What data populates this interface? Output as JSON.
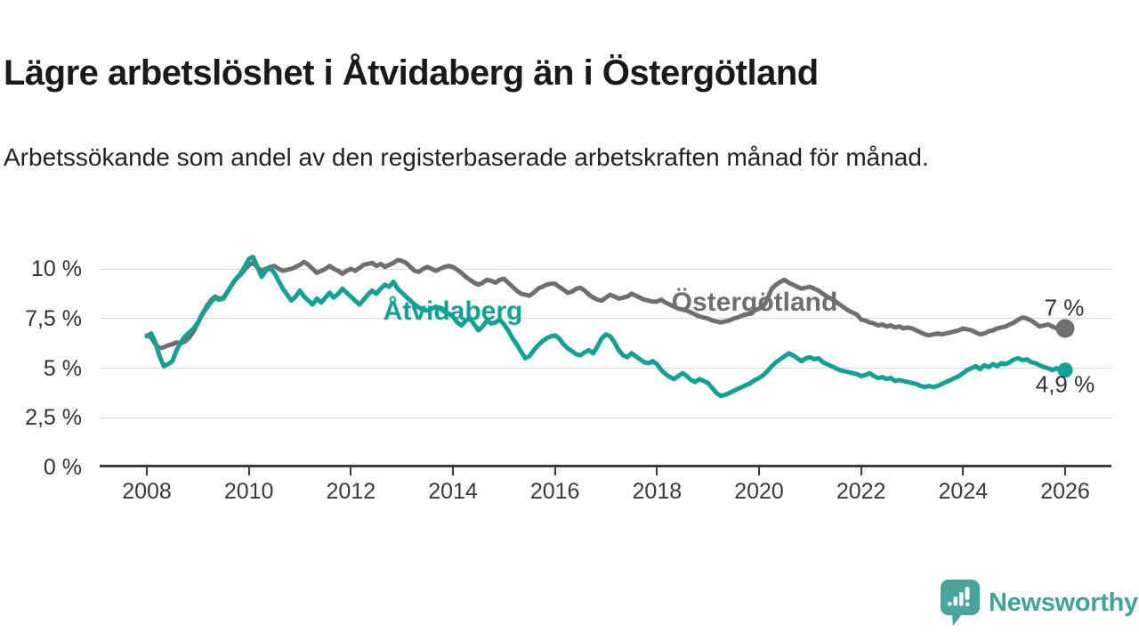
{
  "header": {
    "title": "Lägre arbetslöshet i Åtvidaberg än i Östergötland",
    "subtitle": "Arbetssökande som andel av den registerbaserade arbetskraften månad för månad."
  },
  "footer": {
    "brand": "Newsworthy",
    "logo_icon": "newsworthy-speech-bubble-bar-chart-icon"
  },
  "colors": {
    "teal_series": "#11a296",
    "gray_series": "#6f6f6f",
    "grid": "#d9d9d9",
    "axis": "#3c3c3c",
    "text_dark": "#1a1a1a",
    "brand_teal": "#3fa39a"
  },
  "chart_data": {
    "type": "line",
    "title": "Lägre arbetslöshet i Åtvidaberg än i Östergötland",
    "subtitle": "Arbetssökande som andel av den registerbaserade arbetskraften månad för månad.",
    "unit": "%",
    "frequency": "monthly",
    "x_start": "2008-01",
    "x_end": "2026-01",
    "ylim": [
      0,
      11
    ],
    "grid": "horizontal",
    "legend_position": "inline-labels",
    "y_axis": {
      "ticks": [
        {
          "value": 10,
          "label": "10 %"
        },
        {
          "value": 7.5,
          "label": "7,5 %"
        },
        {
          "value": 5,
          "label": "5 %"
        },
        {
          "value": 2.5,
          "label": "2,5 %"
        },
        {
          "value": 0,
          "label": "0 %"
        }
      ]
    },
    "x_axis": {
      "tick_years": [
        2008,
        2010,
        2012,
        2014,
        2016,
        2018,
        2020,
        2022,
        2024,
        2026
      ],
      "labels": [
        "2008",
        "2010",
        "2012",
        "2014",
        "2016",
        "2018",
        "2020",
        "2022",
        "2024",
        "2026"
      ]
    },
    "series": [
      {
        "name": "Östergötland",
        "color": "#6f6f6f",
        "end_label": "7 %",
        "end_value": 7.0,
        "end_dot_radius": 10.5,
        "line_width": 5,
        "values": [
          6.65,
          6.55,
          6.2,
          6.0,
          6.05,
          6.15,
          6.2,
          6.3,
          6.25,
          6.35,
          6.55,
          6.85,
          7.25,
          7.7,
          8.1,
          8.4,
          8.6,
          8.5,
          8.55,
          8.85,
          9.2,
          9.5,
          9.7,
          9.95,
          10.2,
          10.3,
          10.1,
          9.9,
          10.0,
          10.1,
          10.15,
          10.0,
          9.9,
          9.95,
          10.0,
          10.1,
          10.2,
          10.35,
          10.2,
          10.0,
          9.8,
          9.9,
          10.0,
          10.15,
          10.0,
          9.9,
          9.75,
          9.9,
          10.0,
          9.9,
          10.05,
          10.2,
          10.25,
          10.3,
          10.15,
          10.25,
          10.1,
          10.2,
          10.3,
          10.45,
          10.4,
          10.3,
          10.1,
          9.9,
          9.85,
          10.0,
          10.1,
          10.0,
          9.9,
          10.0,
          10.1,
          10.15,
          10.1,
          9.95,
          9.8,
          9.6,
          9.45,
          9.3,
          9.2,
          9.3,
          9.45,
          9.4,
          9.3,
          9.45,
          9.5,
          9.3,
          9.1,
          8.9,
          8.75,
          8.7,
          8.65,
          8.8,
          9.0,
          9.1,
          9.2,
          9.25,
          9.25,
          9.1,
          8.95,
          8.8,
          8.85,
          9.0,
          9.05,
          8.9,
          8.7,
          8.55,
          8.45,
          8.4,
          8.55,
          8.7,
          8.6,
          8.5,
          8.55,
          8.6,
          8.75,
          8.65,
          8.55,
          8.45,
          8.4,
          8.35,
          8.35,
          8.45,
          8.3,
          8.2,
          8.1,
          8.0,
          7.95,
          7.9,
          7.8,
          7.7,
          7.6,
          7.55,
          7.5,
          7.4,
          7.35,
          7.3,
          7.35,
          7.4,
          7.5,
          7.55,
          7.65,
          7.7,
          7.8,
          7.9,
          8.0,
          8.1,
          8.5,
          9.0,
          9.2,
          9.35,
          9.45,
          9.3,
          9.2,
          9.1,
          9.0,
          9.05,
          9.1,
          9.0,
          8.9,
          8.75,
          8.6,
          8.5,
          8.35,
          8.2,
          8.05,
          7.9,
          7.8,
          7.7,
          7.45,
          7.4,
          7.3,
          7.25,
          7.15,
          7.2,
          7.1,
          7.15,
          7.05,
          7.1,
          7.0,
          7.05,
          7.0,
          6.9,
          6.8,
          6.7,
          6.65,
          6.7,
          6.75,
          6.7,
          6.75,
          6.8,
          6.85,
          6.9,
          7.0,
          6.95,
          6.9,
          6.8,
          6.7,
          6.75,
          6.85,
          6.9,
          7.0,
          7.05,
          7.1,
          7.2,
          7.3,
          7.45,
          7.55,
          7.5,
          7.4,
          7.25,
          7.1,
          7.15,
          7.2,
          7.1,
          7.0,
          7.0,
          7.0
        ]
      },
      {
        "name": "Åtvidaberg",
        "color": "#11a296",
        "end_label": "4,9 %",
        "end_value": 4.9,
        "end_dot_radius": 8.5,
        "line_width": 5,
        "values": [
          6.6,
          6.75,
          6.3,
          5.6,
          5.1,
          5.2,
          5.35,
          5.9,
          6.3,
          6.6,
          6.8,
          7.0,
          7.3,
          7.7,
          8.0,
          8.3,
          8.55,
          8.45,
          8.5,
          8.85,
          9.2,
          9.5,
          9.75,
          10.1,
          10.5,
          10.6,
          10.1,
          9.6,
          9.9,
          10.05,
          9.8,
          9.4,
          9.0,
          8.7,
          8.4,
          8.6,
          8.9,
          8.6,
          8.4,
          8.2,
          8.5,
          8.3,
          8.55,
          8.8,
          8.55,
          8.75,
          9.0,
          8.8,
          8.6,
          8.4,
          8.2,
          8.45,
          8.7,
          8.9,
          8.75,
          9.0,
          9.2,
          9.1,
          9.35,
          9.0,
          8.8,
          8.6,
          8.4,
          8.2,
          8.05,
          7.95,
          7.9,
          8.0,
          8.1,
          8.0,
          7.85,
          7.75,
          7.6,
          7.3,
          7.15,
          7.4,
          7.5,
          7.2,
          6.9,
          7.1,
          7.4,
          7.25,
          7.3,
          7.45,
          7.2,
          6.9,
          6.5,
          6.2,
          5.85,
          5.5,
          5.6,
          5.9,
          6.15,
          6.35,
          6.5,
          6.6,
          6.65,
          6.5,
          6.2,
          6.0,
          5.85,
          5.7,
          5.65,
          5.8,
          5.9,
          5.75,
          6.1,
          6.5,
          6.7,
          6.6,
          6.3,
          5.9,
          5.65,
          5.55,
          5.75,
          5.6,
          5.45,
          5.3,
          5.25,
          5.35,
          5.2,
          4.9,
          4.7,
          4.55,
          4.45,
          4.6,
          4.75,
          4.6,
          4.4,
          4.3,
          4.45,
          4.35,
          4.25,
          4.0,
          3.75,
          3.6,
          3.65,
          3.75,
          3.85,
          3.95,
          4.05,
          4.15,
          4.25,
          4.4,
          4.5,
          4.65,
          4.85,
          5.1,
          5.3,
          5.45,
          5.6,
          5.75,
          5.65,
          5.5,
          5.35,
          5.5,
          5.55,
          5.45,
          5.5,
          5.3,
          5.2,
          5.1,
          5.0,
          4.9,
          4.85,
          4.8,
          4.75,
          4.7,
          4.6,
          4.65,
          4.75,
          4.6,
          4.5,
          4.55,
          4.45,
          4.5,
          4.35,
          4.4,
          4.35,
          4.3,
          4.25,
          4.2,
          4.1,
          4.05,
          4.1,
          4.05,
          4.1,
          4.2,
          4.3,
          4.4,
          4.5,
          4.6,
          4.75,
          4.9,
          5.0,
          5.1,
          4.95,
          5.15,
          5.05,
          5.2,
          5.1,
          5.25,
          5.2,
          5.3,
          5.45,
          5.5,
          5.4,
          5.45,
          5.3,
          5.25,
          5.15,
          5.05,
          5.0,
          4.9,
          5.0,
          4.85,
          4.9
        ]
      }
    ]
  }
}
